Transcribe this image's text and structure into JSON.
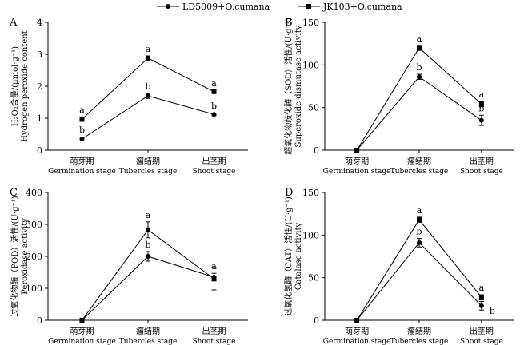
{
  "legend": {
    "series1": "LD5009+O.cumana",
    "series2": "JK103+O.cumana"
  },
  "chart_data": [
    {
      "panel": "A",
      "type": "line",
      "categories": [
        [
          "萌芽期",
          "Germination stage"
        ],
        [
          "瘤结期",
          "Tubercles stage"
        ],
        [
          "出茎期",
          "Shoot stage"
        ]
      ],
      "ylabel": [
        "H₂O₂含量/(μmol·g⁻¹)",
        "Hydrogen peroxide content"
      ],
      "ylim": [
        0,
        4
      ],
      "yticks": [
        0,
        1,
        2,
        3,
        4
      ],
      "series": [
        {
          "name": "LD5009+O.cumana",
          "marker": "circle",
          "values": [
            0.35,
            1.7,
            1.12
          ],
          "errors": [
            0.06,
            0.08,
            0.04
          ],
          "letters": [
            "b",
            "b",
            "b"
          ]
        },
        {
          "name": "JK103+O.cumana",
          "marker": "square",
          "values": [
            0.97,
            2.88,
            1.83
          ],
          "errors": [
            0.07,
            0.07,
            0.05
          ],
          "letters": [
            "a",
            "a",
            "a"
          ]
        }
      ]
    },
    {
      "panel": "B",
      "type": "line",
      "categories": [
        [
          "萌芽期",
          "Germination stage"
        ],
        [
          "瘤结期",
          "Tubercles stage"
        ],
        [
          "出茎期",
          "Shoot stage"
        ]
      ],
      "ylabel": [
        "超氧化物歧化酶（SOD）活性/(U·g⁻¹)",
        "Superoxide dismutase activity"
      ],
      "ylim": [
        0,
        150
      ],
      "yticks": [
        0,
        50,
        100,
        150
      ],
      "series": [
        {
          "name": "LD5009+O.cumana",
          "marker": "circle",
          "values": [
            0,
            86,
            35
          ],
          "errors": [
            0,
            3,
            6
          ],
          "letters": [
            "",
            "b",
            "b"
          ]
        },
        {
          "name": "JK103+O.cumana",
          "marker": "square",
          "values": [
            0,
            120,
            54
          ],
          "errors": [
            0,
            3,
            3
          ],
          "letters": [
            "",
            "a",
            "a"
          ]
        }
      ]
    },
    {
      "panel": "C",
      "type": "line",
      "categories": [
        [
          "萌芽期",
          "Germination stage"
        ],
        [
          "瘤结期",
          "Tubercles stage"
        ],
        [
          "出茎期",
          "Shoot stage"
        ]
      ],
      "ylabel": [
        "过氧化物酶（POD）活性/(U·g⁻¹)",
        "Peroxidase activity"
      ],
      "ylim": [
        0,
        400
      ],
      "yticks": [
        0,
        100,
        200,
        300,
        400
      ],
      "series": [
        {
          "name": "LD5009+O.cumana",
          "marker": "circle",
          "values": [
            0,
            200,
            135
          ],
          "errors": [
            0,
            15,
            12
          ],
          "letters": [
            "",
            "b",
            "a"
          ]
        },
        {
          "name": "JK103+O.cumana",
          "marker": "square",
          "values": [
            0,
            283,
            130
          ],
          "errors": [
            0,
            25,
            35
          ],
          "letters": [
            "",
            "a",
            ""
          ]
        }
      ]
    },
    {
      "panel": "D",
      "type": "line",
      "categories": [
        [
          "萌芽期",
          "Germination stage"
        ],
        [
          "瘤结期",
          "Tubercles stage"
        ],
        [
          "出茎期",
          "Shoot stage"
        ]
      ],
      "ylabel": [
        "过氧化氢酶（CAT）活性/(U·g⁻¹)",
        "Catalase activity"
      ],
      "ylim": [
        0,
        150
      ],
      "yticks": [
        0,
        50,
        100,
        150
      ],
      "series": [
        {
          "name": "LD5009+O.cumana",
          "marker": "circle",
          "values": [
            0,
            91,
            17
          ],
          "errors": [
            0,
            5,
            5
          ],
          "letters": [
            "",
            "b",
            "b"
          ]
        },
        {
          "name": "JK103+O.cumana",
          "marker": "square",
          "values": [
            0,
            118,
            27
          ],
          "errors": [
            0,
            3,
            3
          ],
          "letters": [
            "",
            "a",
            "a"
          ]
        }
      ]
    }
  ]
}
